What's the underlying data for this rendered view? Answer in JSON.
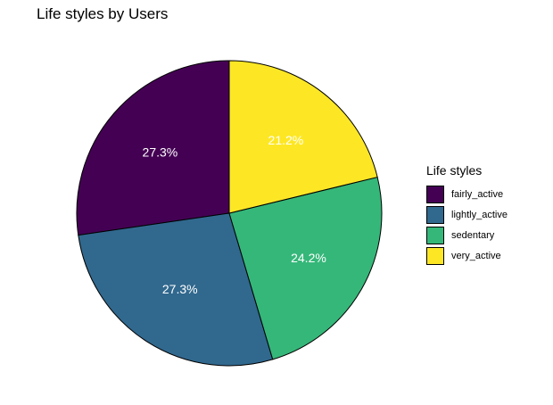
{
  "chart_data": {
    "type": "pie",
    "title": "Life styles by Users",
    "legend_title": "Life styles",
    "legend_position": "right",
    "start": "12 o'clock, counter-clockwise",
    "slices": [
      {
        "category": "fairly_active",
        "percent": 27.3,
        "label": "27.3%",
        "color": "#440154"
      },
      {
        "category": "lightly_active",
        "percent": 27.3,
        "label": "27.3%",
        "color": "#31688E"
      },
      {
        "category": "sedentary",
        "percent": 24.2,
        "label": "24.2%",
        "color": "#35B779"
      },
      {
        "category": "very_active",
        "percent": 21.2,
        "label": "21.2%",
        "color": "#FDE725"
      }
    ]
  }
}
